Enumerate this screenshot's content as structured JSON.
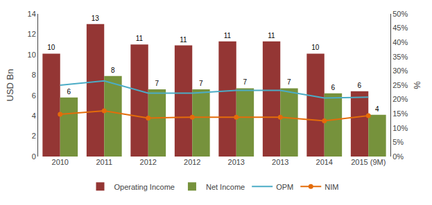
{
  "chart_data": {
    "type": "bar",
    "categories": [
      "2010",
      "2011",
      "2012",
      "2012",
      "2013",
      "2013",
      "2014",
      "2015 (9M)"
    ],
    "series": [
      {
        "name": "Operating Income",
        "type": "bar",
        "color": "#943634",
        "data_labels": true,
        "values": [
          10.1,
          13.0,
          11.0,
          10.9,
          11.3,
          11.3,
          10.1,
          6.4
        ],
        "value_labels": [
          "10",
          "13",
          "11",
          "11",
          "11",
          "11",
          "10",
          "6"
        ]
      },
      {
        "name": "Net Income",
        "type": "bar",
        "color": "#76923C",
        "data_labels": true,
        "values": [
          5.8,
          7.9,
          6.6,
          6.6,
          6.7,
          6.7,
          6.2,
          4.1
        ],
        "value_labels": [
          "6",
          "8",
          "7",
          "7",
          "7",
          "7",
          "6",
          "4"
        ]
      },
      {
        "name": "OPM",
        "type": "line",
        "axis": "y2",
        "color": "#4BACC6",
        "line_style": "solid",
        "values": [
          0.25,
          0.265,
          0.222,
          0.222,
          0.232,
          0.232,
          0.205,
          0.208
        ]
      },
      {
        "name": "NIM",
        "type": "line",
        "axis": "y2",
        "color": "#E46C0A",
        "line_style": "solid",
        "marker": "circle",
        "values": [
          0.148,
          0.16,
          0.135,
          0.138,
          0.138,
          0.138,
          0.125,
          0.143
        ]
      }
    ],
    "ylabel": "USD Bn",
    "y2label": "%",
    "ylim": [
      0,
      14
    ],
    "yticks": [
      0,
      2,
      4,
      6,
      8,
      10,
      12,
      14
    ],
    "y2lim": [
      0,
      0.5
    ],
    "y2ticks": [
      {
        "value": 0.0,
        "label": "0%"
      },
      {
        "value": 0.05,
        "label": "5%"
      },
      {
        "value": 0.1,
        "label": "10%"
      },
      {
        "value": 0.15,
        "label": "15%"
      },
      {
        "value": 0.2,
        "label": "20%"
      },
      {
        "value": 0.25,
        "label": "25%"
      },
      {
        "value": 0.3,
        "label": "30%"
      },
      {
        "value": 0.35,
        "label": "35%"
      },
      {
        "value": 0.4,
        "label": "40%"
      },
      {
        "value": 0.45,
        "label": "45%"
      },
      {
        "value": 0.5,
        "label": "50%"
      }
    ],
    "grid": false,
    "legend": "bottom"
  }
}
